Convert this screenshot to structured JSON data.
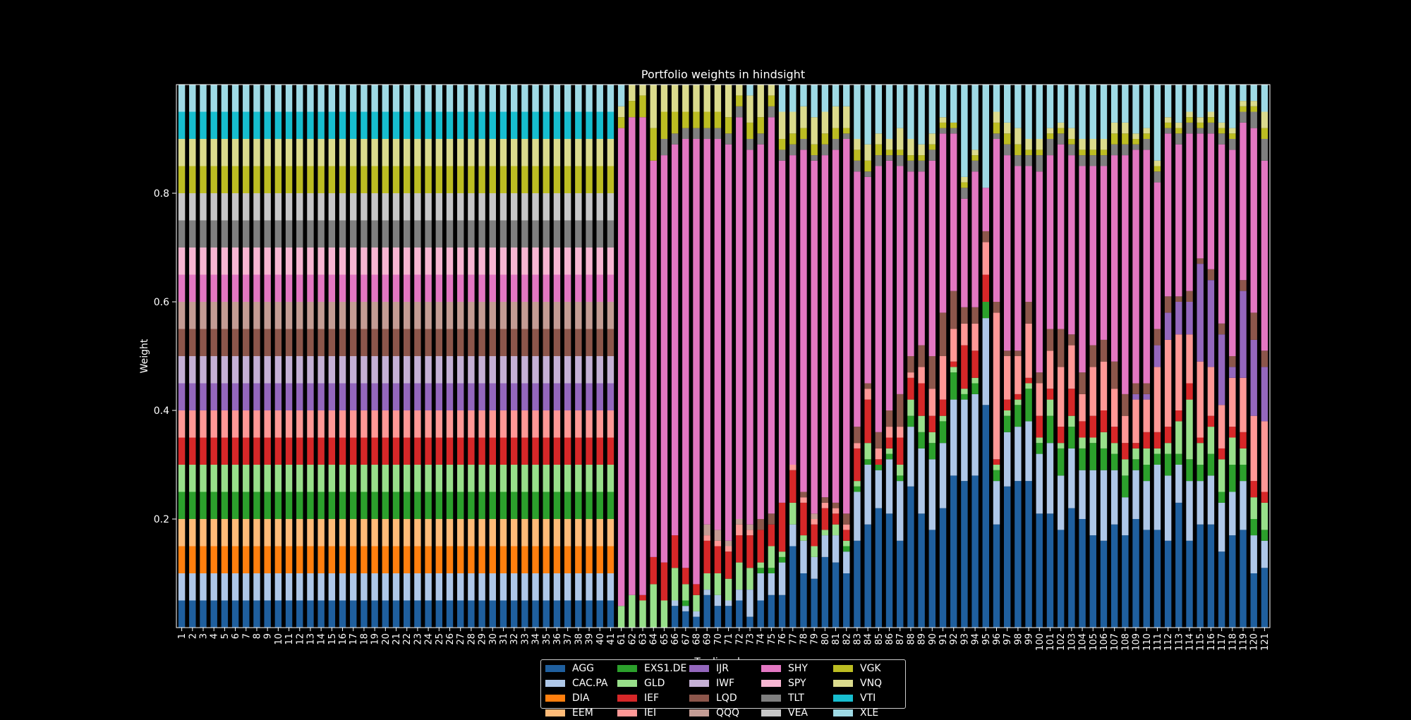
{
  "chart_data": {
    "type": "bar",
    "stacked": true,
    "title": "Portfolio weights in hindsight",
    "ylabel": "Weight",
    "xlabel": "Trading day",
    "ylim": [
      0,
      1
    ],
    "yticks": [
      0.2,
      0.4,
      0.6,
      0.8
    ],
    "ytick_labels": [
      "0.2",
      "0.4",
      "0.6",
      "0.8"
    ],
    "grid": false,
    "legend_position": "bottom-center",
    "legend_columns": 5,
    "categories": [
      "1",
      "2",
      "3",
      "4",
      "5",
      "6",
      "7",
      "8",
      "9",
      "10",
      "11",
      "12",
      "13",
      "14",
      "15",
      "16",
      "17",
      "18",
      "19",
      "20",
      "21",
      "22",
      "23",
      "24",
      "25",
      "26",
      "27",
      "28",
      "29",
      "30",
      "31",
      "32",
      "33",
      "34",
      "35",
      "36",
      "37",
      "38",
      "39",
      "40",
      "41",
      "61",
      "62",
      "63",
      "64",
      "65",
      "66",
      "67",
      "68",
      "69",
      "70",
      "71",
      "72",
      "73",
      "74",
      "75",
      "76",
      "77",
      "78",
      "79",
      "80",
      "81",
      "82",
      "83",
      "84",
      "85",
      "86",
      "87",
      "88",
      "89",
      "90",
      "91",
      "92",
      "93",
      "94",
      "95",
      "96",
      "97",
      "98",
      "99",
      "100",
      "101",
      "102",
      "103",
      "104",
      "105",
      "106",
      "107",
      "108",
      "109",
      "110",
      "111",
      "112",
      "113",
      "114",
      "115",
      "116",
      "117",
      "118",
      "119",
      "120",
      "121"
    ],
    "series": [
      {
        "name": "AGG",
        "color": "#1f5f9e"
      },
      {
        "name": "CAC.PA",
        "color": "#aec7e8"
      },
      {
        "name": "DIA",
        "color": "#ff7f0e"
      },
      {
        "name": "EEM",
        "color": "#ffbb78"
      },
      {
        "name": "EXS1.DE",
        "color": "#2ca02c"
      },
      {
        "name": "GLD",
        "color": "#98df8a"
      },
      {
        "name": "IEF",
        "color": "#d62728"
      },
      {
        "name": "IEI",
        "color": "#ff9896"
      },
      {
        "name": "IJR",
        "color": "#9467bd"
      },
      {
        "name": "IWF",
        "color": "#c5b0d5"
      },
      {
        "name": "LQD",
        "color": "#8c564b"
      },
      {
        "name": "QQQ",
        "color": "#c49c94"
      },
      {
        "name": "SHY",
        "color": "#e377c2"
      },
      {
        "name": "SPY",
        "color": "#f7b6d2"
      },
      {
        "name": "TLT",
        "color": "#7f7f7f"
      },
      {
        "name": "VEA",
        "color": "#c7c7c7"
      },
      {
        "name": "VGK",
        "color": "#bcbd22"
      },
      {
        "name": "VNQ",
        "color": "#dbdb8d"
      },
      {
        "name": "VTI",
        "color": "#17becf"
      },
      {
        "name": "XLE",
        "color": "#9edae5"
      }
    ],
    "equal_weight_days": 41,
    "equal_weight_value": 0.05,
    "dynamic_bars": [
      {
        "AGG": 0.0,
        "CAC.PA": 0.0,
        "GLD": 0.04,
        "IEF": 0.0,
        "SHY": 0.88,
        "TLT": 0.0,
        "VGK": 0.02,
        "VNQ": 0.02
      },
      {
        "AGG": 0.0,
        "CAC.PA": 0.0,
        "GLD": 0.06,
        "SHY": 0.88,
        "VGK": 0.03,
        "VNQ": 0.03
      },
      {
        "AGG": 0.0,
        "CAC.PA": 0.0,
        "EXS1.DE": 0.0,
        "GLD": 0.05,
        "IEF": 0.01,
        "SHY": 0.88,
        "VGK": 0.04,
        "VNQ": 0.02
      },
      {
        "AGG": 0.0,
        "GLD": 0.08,
        "IEF": 0.05,
        "IJR": 0.0,
        "QQQ": 0.0,
        "SHY": 0.73,
        "TLT": 0.0,
        "VGK": 0.06,
        "VNQ": 0.08
      },
      {
        "AGG": 0.0,
        "GLD": 0.05,
        "IEF": 0.07,
        "SHY": 0.75,
        "TLT": 0.03,
        "VGK": 0.05,
        "VNQ": 0.05
      },
      {
        "AGG": 0.04,
        "CAC.PA": 0.01,
        "GLD": 0.06,
        "IEF": 0.06,
        "SHY": 0.72,
        "TLT": 0.02,
        "VGK": 0.04,
        "VNQ": 0.05
      },
      {
        "AGG": 0.03,
        "CAC.PA": 0.01,
        "EXS1.DE": 0.01,
        "GLD": 0.03,
        "IEF": 0.03,
        "SHY": 0.79,
        "TLT": 0.02,
        "VGK": 0.03,
        "VNQ": 0.05
      },
      {
        "AGG": 0.02,
        "CAC.PA": 0.01,
        "EEM": 0.0,
        "GLD": 0.03,
        "IEF": 0.02,
        "SHY": 0.82,
        "TLT": 0.02,
        "VGK": 0.03,
        "VNQ": 0.05
      },
      {
        "AGG": 0.06,
        "CAC.PA": 0.01,
        "GLD": 0.03,
        "IEF": 0.06,
        "IEI": 0.01,
        "QQQ": 0.02,
        "SHY": 0.71,
        "TLT": 0.02,
        "VGK": 0.03,
        "VNQ": 0.05
      },
      {
        "AGG": 0.04,
        "CAC.PA": 0.02,
        "GLD": 0.04,
        "IEF": 0.05,
        "IEI": 0.01,
        "QQQ": 0.02,
        "SHY": 0.72,
        "TLT": 0.02,
        "VGK": 0.03,
        "VNQ": 0.05
      },
      {
        "AGG": 0.04,
        "CAC.PA": 0.01,
        "GLD": 0.04,
        "IEF": 0.05,
        "IEI": 0.01,
        "QQQ": 0.01,
        "SHY": 0.73,
        "TLT": 0.02,
        "VGK": 0.03,
        "VNQ": 0.06
      },
      {
        "AGG": 0.05,
        "CAC.PA": 0.02,
        "GLD": 0.05,
        "IEF": 0.05,
        "IEI": 0.02,
        "QQQ": 0.01,
        "SHY": 0.74,
        "TLT": 0.02,
        "VGK": 0.02,
        "VNQ": 0.02
      },
      {
        "AGG": 0.02,
        "CAC.PA": 0.05,
        "GLD": 0.04,
        "IEF": 0.06,
        "IEI": 0.01,
        "QQQ": 0.01,
        "SHY": 0.69,
        "TLT": 0.02,
        "VGK": 0.03,
        "VNQ": 0.05
      },
      {
        "AGG": 0.05,
        "CAC.PA": 0.05,
        "EXS1.DE": 0.01,
        "GLD": 0.01,
        "IEF": 0.06,
        "LQD": 0.02,
        "SHY": 0.69,
        "TLT": 0.02,
        "VGK": 0.03,
        "VNQ": 0.06
      },
      {
        "AGG": 0.06,
        "CAC.PA": 0.04,
        "EXS1.DE": 0.01,
        "GLD": 0.04,
        "IEF": 0.04,
        "LQD": 0.02,
        "SHY": 0.73,
        "TLT": 0.02,
        "VGK": 0.02,
        "VNQ": 0.02
      },
      {
        "AGG": 0.06,
        "CAC.PA": 0.06,
        "EXS1.DE": 0.01,
        "GLD": 0.01,
        "IEF": 0.09,
        "SHY": 0.63,
        "TLT": 0.02,
        "VGK": 0.02,
        "VNQ": 0.05
      },
      {
        "AGG": 0.15,
        "CAC.PA": 0.04,
        "GLD": 0.04,
        "IEF": 0.06,
        "IEI": 0.01,
        "SHY": 0.57,
        "TLT": 0.02,
        "VGK": 0.02,
        "VNQ": 0.04
      },
      {
        "AGG": 0.1,
        "CAC.PA": 0.06,
        "GLD": 0.01,
        "IEF": 0.06,
        "IEI": 0.01,
        "LQD": 0.01,
        "SHY": 0.63,
        "TLT": 0.02,
        "VGK": 0.02,
        "VNQ": 0.04
      },
      {
        "AGG": 0.09,
        "CAC.PA": 0.04,
        "GLD": 0.02,
        "IEF": 0.04,
        "IEI": 0.01,
        "QQQ": 0.01,
        "SHY": 0.65,
        "TLT": 0.01,
        "VGK": 0.02,
        "VNQ": 0.05
      },
      {
        "AGG": 0.13,
        "CAC.PA": 0.04,
        "GLD": 0.01,
        "IEF": 0.04,
        "IEI": 0.01,
        "LQD": 0.01,
        "SHY": 0.63,
        "TLT": 0.02,
        "VGK": 0.02,
        "VNQ": 0.04
      },
      {
        "AGG": 0.12,
        "CAC.PA": 0.05,
        "GLD": 0.02,
        "IEF": 0.02,
        "IEI": 0.01,
        "LQD": 0.01,
        "SHY": 0.65,
        "TLT": 0.02,
        "VGK": 0.02,
        "VNQ": 0.04
      },
      {
        "AGG": 0.1,
        "CAC.PA": 0.04,
        "EXS1.DE": 0.01,
        "GLD": 0.01,
        "IEF": 0.02,
        "IEI": 0.01,
        "LQD": 0.02,
        "SHY": 0.69,
        "TLT": 0.01,
        "VGK": 0.01,
        "VNQ": 0.04
      },
      {
        "AGG": 0.16,
        "CAC.PA": 0.09,
        "EXS1.DE": 0.01,
        "GLD": 0.01,
        "IEF": 0.06,
        "IEI": 0.01,
        "LQD": 0.03,
        "SHY": 0.47,
        "TLT": 0.02,
        "VGK": 0.02,
        "VNQ": 0.02
      },
      {
        "AGG": 0.19,
        "CAC.PA": 0.11,
        "EXS1.DE": 0.01,
        "GLD": 0.03,
        "IEF": 0.08,
        "IEI": 0.02,
        "LQD": 0.01,
        "SHY": 0.38,
        "TLT": 0.01,
        "VGK": 0.02,
        "VNQ": 0.03
      },
      {
        "AGG": 0.22,
        "CAC.PA": 0.07,
        "EXS1.DE": 0.01,
        "IEF": 0.01,
        "IEI": 0.02,
        "LQD": 0.03,
        "SHY": 0.49,
        "TLT": 0.02,
        "VGK": 0.02,
        "VNQ": 0.02
      },
      {
        "AGG": 0.21,
        "CAC.PA": 0.1,
        "EXS1.DE": 0.01,
        "GLD": 0.01,
        "IEF": 0.02,
        "IEI": 0.02,
        "LQD": 0.03,
        "SHY": 0.46,
        "TLT": 0.01,
        "VGK": 0.01,
        "VNQ": 0.02
      },
      {
        "AGG": 0.16,
        "CAC.PA": 0.11,
        "EXS1.DE": 0.01,
        "GLD": 0.02,
        "IEF": 0.05,
        "IEI": 0.02,
        "LQD": 0.06,
        "SHY": 0.42,
        "TLT": 0.02,
        "VGK": 0.01,
        "VNQ": 0.04
      },
      {
        "AGG": 0.26,
        "CAC.PA": 0.11,
        "EXS1.DE": 0.02,
        "GLD": 0.03,
        "IEF": 0.04,
        "IEI": 0.01,
        "LQD": 0.03,
        "SHY": 0.34,
        "TLT": 0.02,
        "VGK": 0.01,
        "VNQ": 0.03
      },
      {
        "AGG": 0.21,
        "CAC.PA": 0.12,
        "EXS1.DE": 0.03,
        "GLD": 0.03,
        "IEF": 0.06,
        "IEI": 0.03,
        "LQD": 0.04,
        "SHY": 0.32,
        "TLT": 0.02,
        "VGK": 0.01,
        "VNQ": 0.02
      },
      {
        "AGG": 0.18,
        "CAC.PA": 0.13,
        "EXS1.DE": 0.03,
        "GLD": 0.02,
        "IEF": 0.03,
        "IEI": 0.05,
        "LQD": 0.06,
        "SHY": 0.36,
        "TLT": 0.02,
        "VGK": 0.01,
        "VNQ": 0.02
      },
      {
        "AGG": 0.22,
        "CAC.PA": 0.12,
        "EXS1.DE": 0.04,
        "GLD": 0.01,
        "IEF": 0.03,
        "IEI": 0.08,
        "LQD": 0.08,
        "SHY": 0.33,
        "TLT": 0.01,
        "VGK": 0.01,
        "VNQ": 0.01
      },
      {
        "AGG": 0.28,
        "CAC.PA": 0.14,
        "EXS1.DE": 0.05,
        "GLD": 0.01,
        "IEF": 0.01,
        "IEI": 0.06,
        "LQD": 0.07,
        "SHY": 0.29,
        "TLT": 0.01,
        "VGK": 0.01
      },
      {
        "AGG": 0.27,
        "CAC.PA": 0.15,
        "EXS1.DE": 0.01,
        "GLD": 0.01,
        "IEF": 0.08,
        "IEI": 0.04,
        "LQD": 0.03,
        "SHY": 0.2,
        "TLT": 0.02,
        "VGK": 0.01,
        "VNQ": 0.01
      },
      {
        "AGG": 0.28,
        "CAC.PA": 0.15,
        "EXS1.DE": 0.02,
        "GLD": 0.01,
        "IEF": 0.05,
        "IEI": 0.05,
        "LQD": 0.03,
        "SHY": 0.25,
        "TLT": 0.02,
        "VGK": 0.01,
        "VNQ": 0.01
      },
      {
        "AGG": 0.41,
        "CAC.PA": 0.16,
        "EXS1.DE": 0.03,
        "IEF": 0.05,
        "IEI": 0.06,
        "LQD": 0.02,
        "SHY": 0.08
      },
      {
        "AGG": 0.19,
        "CAC.PA": 0.08,
        "EXS1.DE": 0.02,
        "GLD": 0.01,
        "IEF": 0.01,
        "IEI": 0.27,
        "LQD": 0.02,
        "SHY": 0.3,
        "TLT": 0.01,
        "VGK": 0.02,
        "VNQ": 0.02
      },
      {
        "AGG": 0.26,
        "CAC.PA": 0.1,
        "EXS1.DE": 0.03,
        "GLD": 0.01,
        "IEF": 0.02,
        "IEI": 0.08,
        "LQD": 0.01,
        "SHY": 0.36,
        "TLT": 0.02,
        "VGK": 0.02,
        "VNQ": 0.02
      },
      {
        "AGG": 0.27,
        "CAC.PA": 0.1,
        "EXS1.DE": 0.04,
        "GLD": 0.01,
        "IEF": 0.01,
        "IEI": 0.07,
        "LQD": 0.01,
        "SHY": 0.34,
        "TLT": 0.02,
        "VGK": 0.02,
        "VNQ": 0.03
      },
      {
        "AGG": 0.27,
        "CAC.PA": 0.11,
        "EXS1.DE": 0.06,
        "GLD": 0.01,
        "IEF": 0.01,
        "IEI": 0.1,
        "LQD": 0.04,
        "SHY": 0.25,
        "TLT": 0.02,
        "VGK": 0.01,
        "VNQ": 0.02
      },
      {
        "AGG": 0.21,
        "CAC.PA": 0.11,
        "EXS1.DE": 0.02,
        "GLD": 0.01,
        "IEF": 0.04,
        "IEI": 0.06,
        "LQD": 0.02,
        "SHY": 0.37,
        "TLT": 0.03,
        "VGK": 0.01,
        "VNQ": 0.02
      },
      {
        "AGG": 0.21,
        "CAC.PA": 0.13,
        "EXS1.DE": 0.05,
        "GLD": 0.03,
        "IEF": 0.02,
        "IEI": 0.07,
        "LQD": 0.04,
        "SHY": 0.32,
        "TLT": 0.03,
        "VGK": 0.01,
        "VNQ": 0.01
      },
      {
        "AGG": 0.18,
        "CAC.PA": 0.1,
        "EXS1.DE": 0.05,
        "GLD": 0.01,
        "IEF": 0.03,
        "IEI": 0.11,
        "LQD": 0.07,
        "SHY": 0.34,
        "TLT": 0.02,
        "VGK": 0.01,
        "VNQ": 0.01
      },
      {
        "AGG": 0.22,
        "CAC.PA": 0.11,
        "EXS1.DE": 0.04,
        "GLD": 0.02,
        "IEF": 0.05,
        "IEI": 0.08,
        "LQD": 0.02,
        "SHY": 0.33,
        "TLT": 0.02,
        "VGK": 0.01,
        "VNQ": 0.02
      },
      {
        "AGG": 0.2,
        "CAC.PA": 0.09,
        "EXS1.DE": 0.04,
        "GLD": 0.02,
        "IEF": 0.03,
        "IEI": 0.05,
        "LQD": 0.04,
        "SHY": 0.38,
        "TLT": 0.02,
        "VGK": 0.01,
        "VNQ": 0.02
      },
      {
        "AGG": 0.17,
        "CAC.PA": 0.12,
        "EXS1.DE": 0.05,
        "GLD": 0.01,
        "IEF": 0.04,
        "IEI": 0.09,
        "LQD": 0.04,
        "SHY": 0.33,
        "TLT": 0.02,
        "VGK": 0.01,
        "VNQ": 0.02
      },
      {
        "AGG": 0.16,
        "CAC.PA": 0.13,
        "EXS1.DE": 0.04,
        "GLD": 0.03,
        "IEF": 0.04,
        "IEI": 0.09,
        "LQD": 0.04,
        "SHY": 0.32,
        "TLT": 0.02,
        "VGK": 0.01,
        "VNQ": 0.02
      },
      {
        "AGG": 0.19,
        "CAC.PA": 0.1,
        "EXS1.DE": 0.03,
        "GLD": 0.02,
        "IEF": 0.03,
        "IEI": 0.07,
        "LQD": 0.05,
        "SHY": 0.38,
        "TLT": 0.02,
        "VGK": 0.02,
        "VNQ": 0.02
      },
      {
        "AGG": 0.17,
        "CAC.PA": 0.07,
        "EXS1.DE": 0.04,
        "GLD": 0.03,
        "IEF": 0.03,
        "IEI": 0.05,
        "LQD": 0.04,
        "SHY": 0.44,
        "TLT": 0.02,
        "VGK": 0.02,
        "VNQ": 0.02
      },
      {
        "AGG": 0.2,
        "CAC.PA": 0.09,
        "EXS1.DE": 0.02,
        "GLD": 0.02,
        "IEF": 0.01,
        "IEI": 0.08,
        "IJR": 0.01,
        "LQD": 0.02,
        "SHY": 0.43,
        "TLT": 0.01,
        "VGK": 0.01,
        "VNQ": 0.01
      },
      {
        "AGG": 0.18,
        "CAC.PA": 0.09,
        "EXS1.DE": 0.03,
        "GLD": 0.03,
        "IEF": 0.03,
        "IEI": 0.06,
        "IJR": 0.01,
        "LQD": 0.02,
        "SHY": 0.43,
        "TLT": 0.02,
        "VGK": 0.01,
        "VNQ": 0.01
      },
      {
        "AGG": 0.18,
        "CAC.PA": 0.12,
        "EXS1.DE": 0.02,
        "GLD": 0.01,
        "IEF": 0.03,
        "IEI": 0.12,
        "IJR": 0.04,
        "LQD": 0.03,
        "SHY": 0.27,
        "TLT": 0.02,
        "VGK": 0.01,
        "VNQ": 0.01
      },
      {
        "AGG": 0.16,
        "CAC.PA": 0.12,
        "EXS1.DE": 0.04,
        "GLD": 0.02,
        "IEF": 0.03,
        "IEI": 0.16,
        "IJR": 0.05,
        "LQD": 0.03,
        "SHY": 0.3,
        "TLT": 0.01,
        "VGK": 0.01,
        "VNQ": 0.01
      },
      {
        "AGG": 0.23,
        "CAC.PA": 0.07,
        "EXS1.DE": 0.02,
        "GLD": 0.06,
        "IEF": 0.02,
        "IEI": 0.14,
        "IJR": 0.06,
        "LQD": 0.01,
        "SHY": 0.28,
        "TLT": 0.02,
        "VGK": 0.01,
        "VNQ": 0.01
      },
      {
        "AGG": 0.16,
        "CAC.PA": 0.11,
        "EXS1.DE": 0.04,
        "GLD": 0.11,
        "IEF": 0.03,
        "IEI": 0.09,
        "IJR": 0.06,
        "LQD": 0.02,
        "SHY": 0.29,
        "TLT": 0.02,
        "VGK": 0.01,
        "VNQ": 0.01
      },
      {
        "AGG": 0.19,
        "CAC.PA": 0.08,
        "EXS1.DE": 0.03,
        "GLD": 0.04,
        "IEF": 0.01,
        "IEI": 0.14,
        "IJR": 0.18,
        "LQD": 0.01,
        "SHY": 0.23,
        "TLT": 0.01,
        "VGK": 0.01,
        "VNQ": 0.01
      },
      {
        "AGG": 0.19,
        "CAC.PA": 0.09,
        "EXS1.DE": 0.04,
        "GLD": 0.05,
        "IEF": 0.02,
        "IEI": 0.09,
        "IJR": 0.16,
        "LQD": 0.02,
        "SHY": 0.25,
        "TLT": 0.02,
        "VGK": 0.01,
        "VNQ": 0.01
      },
      {
        "AGG": 0.14,
        "CAC.PA": 0.09,
        "EXS1.DE": 0.02,
        "GLD": 0.06,
        "IEF": 0.02,
        "IEI": 0.08,
        "IJR": 0.13,
        "LQD": 0.02,
        "SHY": 0.33,
        "TLT": 0.02,
        "VGK": 0.01,
        "VNQ": 0.01
      },
      {
        "AGG": 0.17,
        "CAC.PA": 0.08,
        "EXS1.DE": 0.05,
        "GLD": 0.05,
        "IEF": 0.02,
        "IEI": 0.09,
        "IJR": 0.02,
        "LQD": 0.02,
        "SHY": 0.38,
        "TLT": 0.02,
        "VGK": 0.01,
        "VNQ": 0.01
      },
      {
        "AGG": 0.18,
        "CAC.PA": 0.09,
        "EXS1.DE": 0.03,
        "GLD": 0.03,
        "IEF": 0.03,
        "IEI": 0.1,
        "IJR": 0.16,
        "LQD": 0.02,
        "SHY": 0.29,
        "TLT": 0.02,
        "VGK": 0.01,
        "VNQ": 0.01
      },
      {
        "AGG": 0.1,
        "CAC.PA": 0.07,
        "EXS1.DE": 0.03,
        "GLD": 0.04,
        "IEF": 0.03,
        "IEI": 0.12,
        "IJR": 0.14,
        "LQD": 0.05,
        "SHY": 0.34,
        "TLT": 0.03,
        "VGK": 0.01,
        "VNQ": 0.01
      },
      {
        "AGG": 0.11,
        "CAC.PA": 0.05,
        "EXS1.DE": 0.02,
        "GLD": 0.05,
        "IEF": 0.02,
        "IEI": 0.13,
        "IJR": 0.1,
        "LQD": 0.03,
        "SHY": 0.35,
        "TLT": 0.04,
        "VGK": 0.02,
        "VNQ": 0.03
      }
    ]
  }
}
